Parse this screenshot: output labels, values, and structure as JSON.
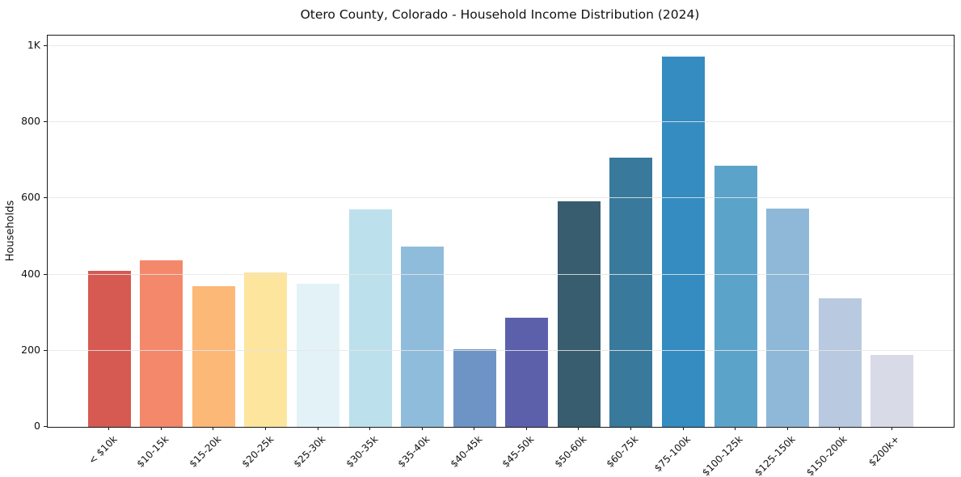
{
  "chart_data": {
    "type": "bar",
    "title": "Otero County, Colorado - Household Income Distribution (2024)",
    "xlabel": "",
    "ylabel": "Households",
    "categories": [
      "< $10k",
      "$10-15k",
      "$15-20k",
      "$20-25k",
      "$25-30k",
      "$30-35k",
      "$35-40k",
      "$40-45k",
      "$45-50k",
      "$50-60k",
      "$60-75k",
      "$75-100k",
      "$100-125k",
      "$125-150k",
      "$150-200k",
      "$200k+"
    ],
    "values": [
      410,
      437,
      370,
      405,
      375,
      570,
      473,
      203,
      287,
      593,
      706,
      972,
      685,
      572,
      337,
      189
    ],
    "bar_colors": [
      "#d65a52",
      "#f4886b",
      "#fbb877",
      "#fde59e",
      "#e3f2f6",
      "#bde0ed",
      "#90bcdb",
      "#6d94c4",
      "#5c60ab",
      "#385d6e",
      "#38799c",
      "#348cc1",
      "#5ba3c9",
      "#8fb8d8",
      "#b8c9e0",
      "#d8dae8"
    ],
    "y_ticks": [
      {
        "label": "0",
        "value": 0
      },
      {
        "label": "200",
        "value": 200
      },
      {
        "label": "400",
        "value": 400
      },
      {
        "label": "600",
        "value": 600
      },
      {
        "label": "800",
        "value": 800
      },
      {
        "label": "1K",
        "value": 1000
      }
    ],
    "ylim": [
      0,
      1027
    ],
    "grid": "horizontal",
    "legend": "none",
    "colors": {
      "background": "#ffffff",
      "axis": "#1a1a1a",
      "grid": "#e5e5e5",
      "text": "#111111"
    }
  }
}
